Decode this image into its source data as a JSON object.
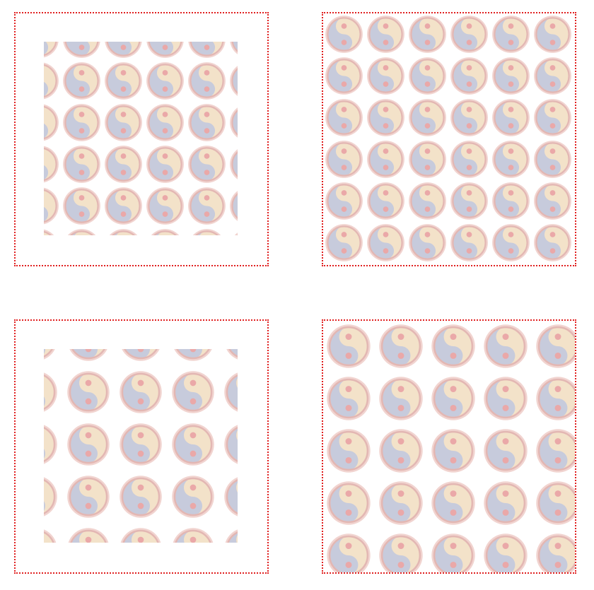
{
  "panels": [
    {
      "id": "top-left",
      "pattern_inset": "content-box",
      "tile_count_visible": "partial"
    },
    {
      "id": "top-right",
      "pattern_inset": "border-box",
      "tile_count_visible": "full"
    },
    {
      "id": "bottom-left",
      "pattern_inset": "content-box",
      "tile_count_visible": "partial"
    },
    {
      "id": "bottom-right",
      "pattern_inset": "border-box",
      "tile_count_visible": "full"
    }
  ],
  "colors": {
    "border": "#e02020",
    "ring": "#e8b8b8",
    "yin": "#c7cbdc",
    "yang": "#f3e2c9",
    "dot": "#eaa8a8",
    "background": "#ffffff"
  },
  "icons": [
    "yin-yang-icon"
  ]
}
